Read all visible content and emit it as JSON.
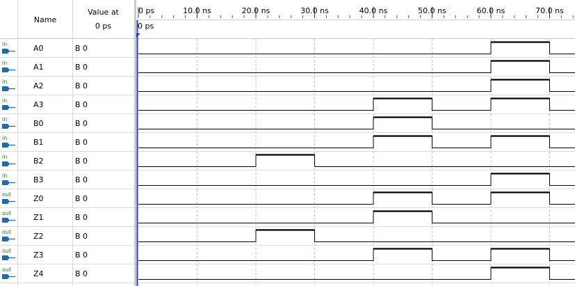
{
  "header": {
    "name_label": "Name",
    "value_label_1": "Value at",
    "value_label_2": "0 ps",
    "cursor_label": "0 ps"
  },
  "timescale": {
    "ticks": [
      {
        "ns": 0,
        "label": "0 ps"
      },
      {
        "ns": 10,
        "label": "10.0 ns"
      },
      {
        "ns": 20,
        "label": "20.0 ns"
      },
      {
        "ns": 30,
        "label": "30.0 ns"
      },
      {
        "ns": 40,
        "label": "40.0 ns"
      },
      {
        "ns": 50,
        "label": "50.0 ns"
      },
      {
        "ns": 60,
        "label": "60.0 ns"
      },
      {
        "ns": 70,
        "label": "70.0 ns"
      }
    ]
  },
  "colors": {
    "input_icon": "#1e7a1e",
    "port_blue": "#1c6bb0",
    "cursor": "#1f3fbf",
    "grid": "#bcbcbc"
  },
  "signals": [
    {
      "name": "A0",
      "type": "in",
      "value": "B 0",
      "high": [
        [
          60,
          70
        ]
      ]
    },
    {
      "name": "A1",
      "type": "in",
      "value": "B 0",
      "high": [
        [
          60,
          70
        ]
      ]
    },
    {
      "name": "A2",
      "type": "in",
      "value": "B 0",
      "high": [
        [
          60,
          70
        ]
      ]
    },
    {
      "name": "A3",
      "type": "in",
      "value": "B 0",
      "high": [
        [
          40,
          50
        ],
        [
          60,
          70
        ]
      ]
    },
    {
      "name": "B0",
      "type": "in",
      "value": "B 0",
      "high": [
        [
          40,
          50
        ]
      ]
    },
    {
      "name": "B1",
      "type": "in",
      "value": "B 0",
      "high": [
        [
          40,
          50
        ],
        [
          60,
          70
        ]
      ]
    },
    {
      "name": "B2",
      "type": "in",
      "value": "B 0",
      "high": [
        [
          20,
          30
        ]
      ]
    },
    {
      "name": "B3",
      "type": "in",
      "value": "B 0",
      "high": [
        [
          60,
          70
        ]
      ]
    },
    {
      "name": "Z0",
      "type": "out",
      "value": "B 0",
      "high": [
        [
          40,
          50
        ],
        [
          60,
          70
        ]
      ]
    },
    {
      "name": "Z1",
      "type": "out",
      "value": "B 0",
      "high": [
        [
          40,
          50
        ]
      ]
    },
    {
      "name": "Z2",
      "type": "out",
      "value": "B 0",
      "high": [
        [
          20,
          30
        ]
      ]
    },
    {
      "name": "Z3",
      "type": "out",
      "value": "B 0",
      "high": [
        [
          40,
          50
        ],
        [
          60,
          70
        ]
      ]
    },
    {
      "name": "Z4",
      "type": "out",
      "value": "B 0",
      "high": [
        [
          60,
          70
        ]
      ]
    }
  ]
}
